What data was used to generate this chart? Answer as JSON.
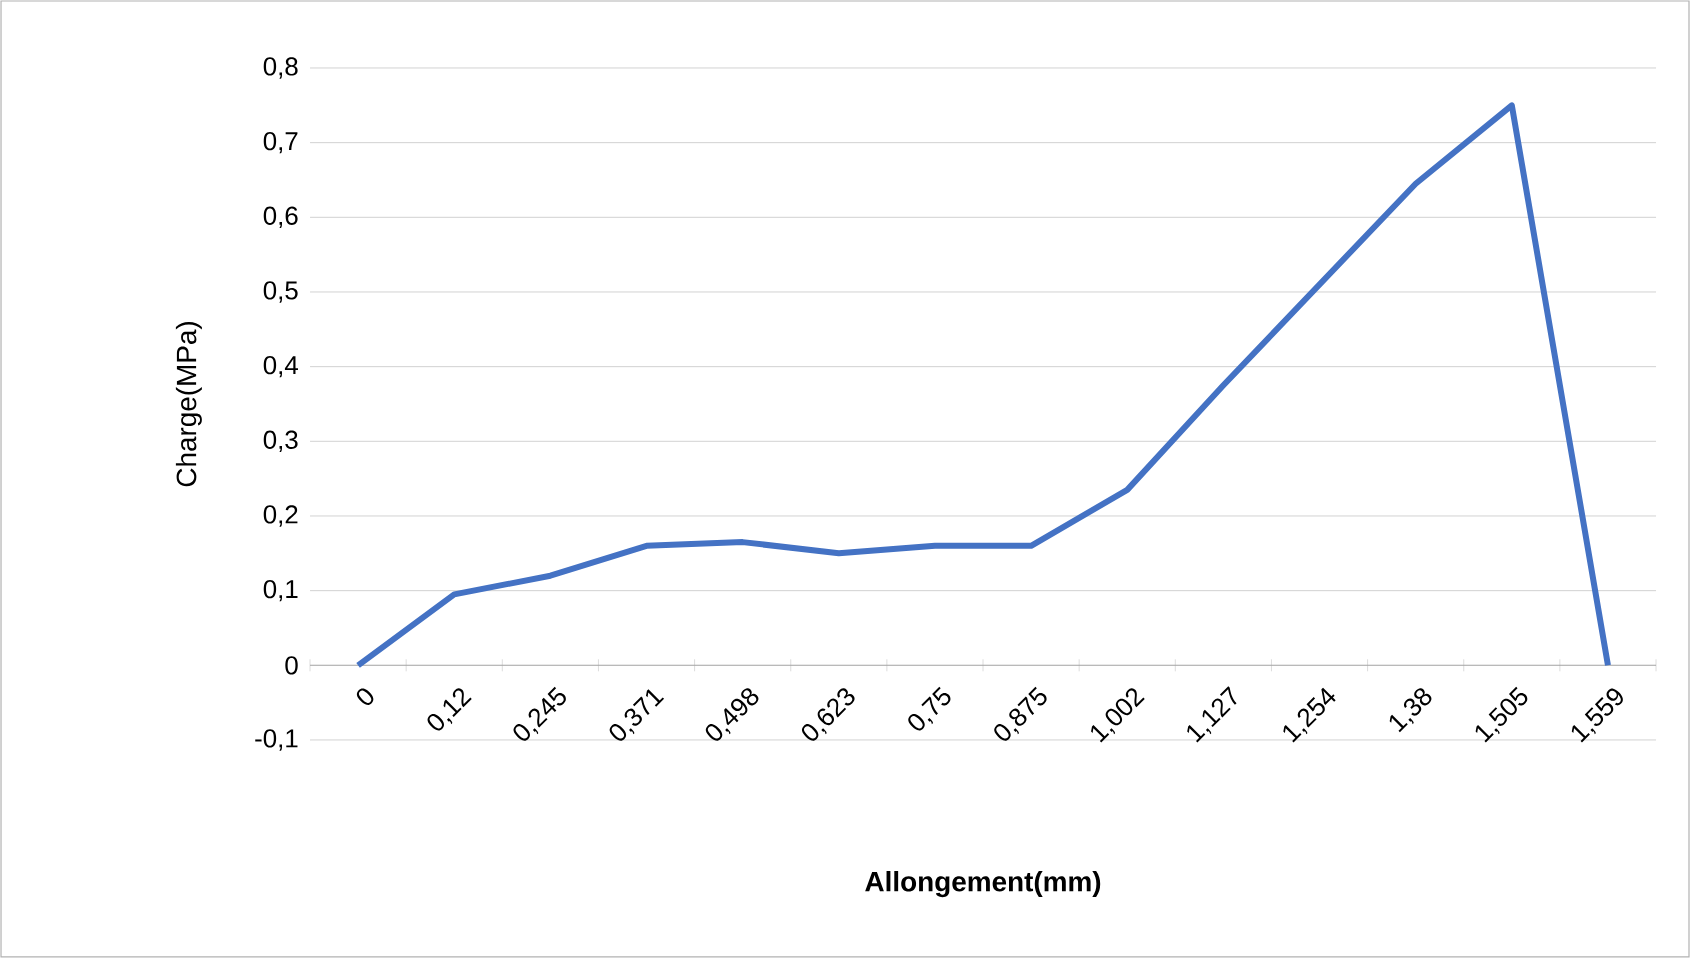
{
  "chart_data": {
    "type": "line",
    "xlabel": "Allongement(mm)",
    "ylabel": "Charge(MPa)",
    "categories": [
      "0",
      "0,12",
      "0,245",
      "0,371",
      "0,498",
      "0,623",
      "0,75",
      "0,875",
      "1,002",
      "1,127",
      "1,254",
      "1,38",
      "1,505",
      "1,559"
    ],
    "series": [
      {
        "color": "#4472c4",
        "values": [
          0,
          0.095,
          0.12,
          0.16,
          0.165,
          0.15,
          0.16,
          0.16,
          0.235,
          0.375,
          0.51,
          0.645,
          0.75,
          0
        ]
      }
    ],
    "ylim": [
      -0.1,
      0.8
    ],
    "yticks": [
      {
        "value": -0.1,
        "label": "-0,1"
      },
      {
        "value": 0,
        "label": "0"
      },
      {
        "value": 0.1,
        "label": "0,1"
      },
      {
        "value": 0.2,
        "label": "0,2"
      },
      {
        "value": 0.3,
        "label": "0,3"
      },
      {
        "value": 0.4,
        "label": "0,4"
      },
      {
        "value": 0.5,
        "label": "0,5"
      },
      {
        "value": 0.6,
        "label": "0,6"
      },
      {
        "value": 0.7,
        "label": "0,7"
      },
      {
        "value": 0.8,
        "label": "0,8"
      }
    ],
    "grid": "y",
    "marker": "none",
    "line_style": "solid"
  }
}
